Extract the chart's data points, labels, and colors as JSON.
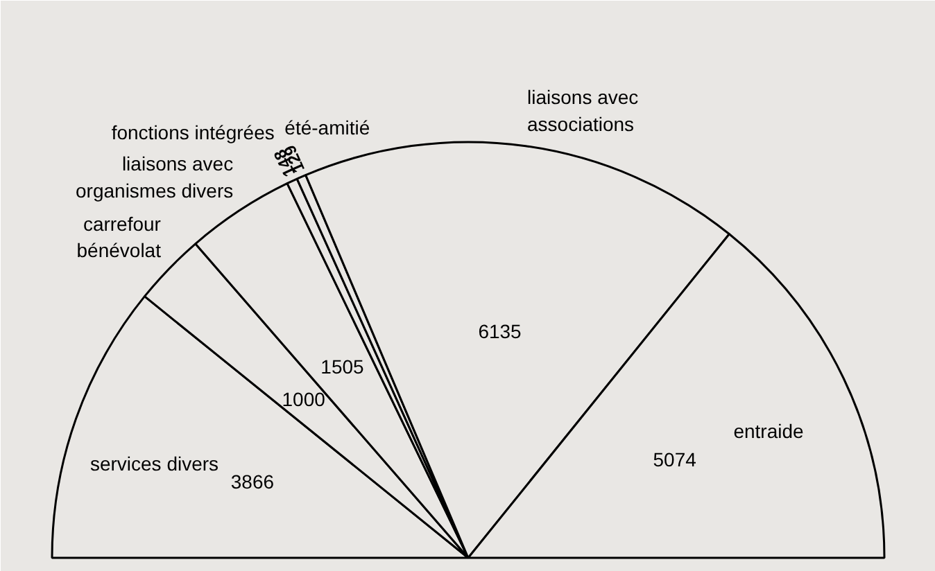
{
  "chart_data": {
    "type": "pie",
    "categories": [
      "services divers",
      "carrefour bénévolat",
      "liaisons avec organismes divers",
      "fonctions intégrées",
      "été-amitié",
      "liaisons avec associations",
      "entraide"
    ],
    "values": [
      3866,
      1000,
      1505,
      148,
      129,
      6135,
      5074
    ],
    "colors": [
      "#e9e7e4",
      "#e9e7e4",
      "#e9e7e4",
      "#e9e7e4",
      "#e9e7e4",
      "#e9e7e4",
      "#e9e7e4"
    ],
    "data_labels": true
  }
}
